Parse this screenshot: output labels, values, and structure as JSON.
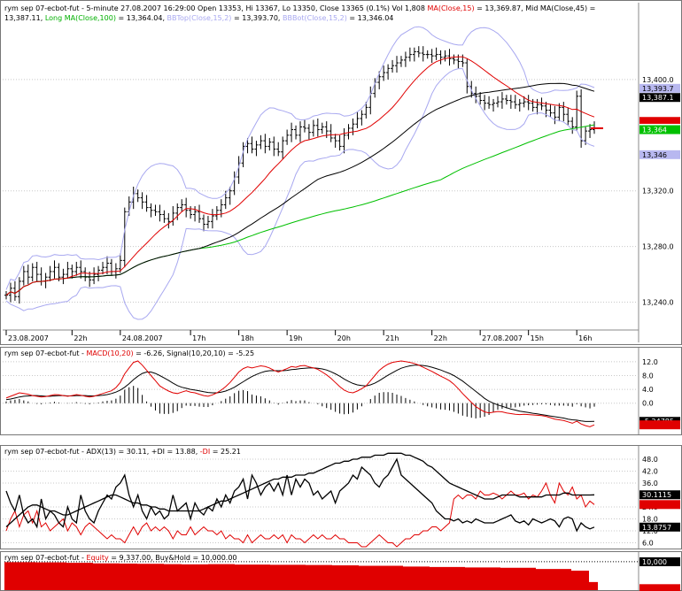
{
  "price_header": {
    "prefix": "rym   sep 07-ecbot-fut - 5-minute 27.08.2007 16:29:00 Open 13353, Hi 13367, Lo 13350, Close 13365 (0.1%) Vol 1,808 ",
    "ma_label": "MA(Close,15)",
    "ma_value": " = 13,369.87, ",
    "mid_label": "Mid MA(Close,45)",
    "mid_value": " =",
    "line2_value": "13,387.11, ",
    "long_label": "Long MA(Close,100)",
    "long_value": " = 13,364.04, ",
    "bbtop_label": "BBTop(Close,15,2)",
    "bbtop_value": " = 13,393.70, ",
    "bbbot_label": "BBBot(Close,15,2)",
    "bbbot_value": " = 13,346.04"
  },
  "macd_header": {
    "prefix": "rym   sep 07-ecbot-fut - ",
    "macd_label": "MACD(10,20)",
    "macd_value": " = -6.26, ",
    "signal_label": "Signal(10,20,10)",
    "signal_value": " = -5.25"
  },
  "adx_header": {
    "prefix": "rym   sep 07-ecbot-fut - ",
    "adx_label": "ADX(13)",
    "adx_value": " = 30.11, ",
    "pdi_label": "+DI",
    "pdi_value": " = 13.88, ",
    "mdi_label": "-DI",
    "mdi_value": " = 25.21"
  },
  "equity_header": {
    "prefix": "rym   sep 07-ecbot-fut - ",
    "equity_label": "Equity",
    "equity_value": " = 9,337.00, ",
    "bh_label": "Buy&Hold",
    "bh_value": " = 10,000.00"
  },
  "colors": {
    "ma15": "#e00000",
    "ma45": "#000000",
    "ma100": "#00c000",
    "bb": "#a8a8f0",
    "equity": "#e00000",
    "tag_blue": "#b8b8f0"
  },
  "chart_data": [
    {
      "type": "line",
      "panel": "price",
      "title": "sep 07-ecbot-fut - 5-minute",
      "y_ticks": [
        "13,400.0",
        "13,320.0",
        "13,280.0",
        "13,240.0"
      ],
      "y_tick_values": [
        13400,
        13320,
        13280,
        13240
      ],
      "ylim": [
        13220,
        13440
      ],
      "x_tick_labels": [
        "23.08.2007",
        "22h",
        "24.08.2007",
        "17h",
        "18h",
        "19h",
        "20h",
        "21h",
        "22h",
        "27.08.2007",
        "15h",
        "16h"
      ],
      "x_tick_index": [
        0,
        15,
        26,
        42,
        53,
        64,
        75,
        86,
        97,
        108,
        119,
        130
      ],
      "bar_count": 135,
      "close": [
        13245,
        13250,
        13244,
        13255,
        13262,
        13258,
        13265,
        13260,
        13255,
        13258,
        13262,
        13265,
        13258,
        13260,
        13264,
        13262,
        13265,
        13262,
        13258,
        13256,
        13260,
        13263,
        13265,
        13268,
        13262,
        13264,
        13270,
        13305,
        13312,
        13318,
        13315,
        13312,
        13308,
        13306,
        13305,
        13303,
        13300,
        13298,
        13304,
        13308,
        13310,
        13306,
        13303,
        13305,
        13300,
        13296,
        13298,
        13302,
        13306,
        13310,
        13315,
        13320,
        13330,
        13340,
        13352,
        13354,
        13350,
        13353,
        13356,
        13352,
        13355,
        13350,
        13348,
        13356,
        13360,
        13364,
        13360,
        13366,
        13365,
        13362,
        13367,
        13364,
        13366,
        13363,
        13358,
        13356,
        13352,
        13360,
        13365,
        13368,
        13372,
        13375,
        13380,
        13390,
        13398,
        13402,
        13405,
        13408,
        13410,
        13412,
        13414,
        13416,
        13418,
        13420,
        13419,
        13418,
        13418,
        13417,
        13418,
        13416,
        13417,
        13415,
        13414,
        13413,
        13412,
        13395,
        13390,
        13388,
        13385,
        13383,
        13382,
        13383,
        13384,
        13386,
        13385,
        13384,
        13382,
        13383,
        13384,
        13383,
        13380,
        13382,
        13381,
        13378,
        13376,
        13373,
        13380,
        13375,
        13370,
        13366,
        13388,
        13356,
        13363,
        13364,
        13365
      ],
      "ma15_last": 13369.87,
      "ma45_last": 13387.11,
      "ma100_last": 13364.04,
      "bbtop_last": 13393.7,
      "bbbot_last": 13346.04,
      "right_tags": [
        {
          "text": "13,393.7",
          "value": 13393.7,
          "bg": "#b8b8f0",
          "fg": "#000000"
        },
        {
          "text": "13,387.1",
          "value": 13387.1,
          "bg": "#000000",
          "fg": "#ffffff"
        },
        {
          "text": "13,369.9",
          "value": 13369.9,
          "bg": "#e00000",
          "fg": "#e00000"
        },
        {
          "text": "13,365",
          "value": 13365,
          "bg": "#ffffff",
          "fg": "#000000"
        },
        {
          "text": "13,364",
          "value": 13364,
          "bg": "#00c000",
          "fg": "#ffffff"
        },
        {
          "text": "13,346",
          "value": 13346,
          "bg": "#b8b8f0",
          "fg": "#000000"
        }
      ]
    },
    {
      "type": "line",
      "panel": "macd",
      "series": [
        {
          "name": "MACD(10,20)",
          "last": -6.26
        },
        {
          "name": "Signal(10,20,10)",
          "last": -5.25
        }
      ],
      "y_ticks": [
        "12.0",
        "8.0",
        "4.0",
        "0.0"
      ],
      "y_tick_values": [
        12,
        8,
        4,
        0
      ],
      "ylim": [
        -8,
        14
      ],
      "macd": [
        1.5,
        2.0,
        2.5,
        3.0,
        2.8,
        2.6,
        2.2,
        2.0,
        1.8,
        1.9,
        2.2,
        2.5,
        2.4,
        2.2,
        2.0,
        2.2,
        2.5,
        2.3,
        2.0,
        1.8,
        2.0,
        2.4,
        2.8,
        3.2,
        3.6,
        4.5,
        6.0,
        8.5,
        10.2,
        11.8,
        12.2,
        11.0,
        9.5,
        8.0,
        6.5,
        5.0,
        4.2,
        3.5,
        3.0,
        2.8,
        3.2,
        3.6,
        3.2,
        3.0,
        2.6,
        2.2,
        2.0,
        2.4,
        3.0,
        3.8,
        4.8,
        6.0,
        7.5,
        9.0,
        10.0,
        10.5,
        10.2,
        10.5,
        10.8,
        10.6,
        10.2,
        9.5,
        9.0,
        9.5,
        10.0,
        10.6,
        10.4,
        10.8,
        10.9,
        10.5,
        10.2,
        9.8,
        9.0,
        8.2,
        7.2,
        6.0,
        4.8,
        3.8,
        3.2,
        3.0,
        3.5,
        4.2,
        5.0,
        6.5,
        8.0,
        9.5,
        10.5,
        11.3,
        11.8,
        12.0,
        12.2,
        12.0,
        11.8,
        11.5,
        11.0,
        10.4,
        9.8,
        9.2,
        8.5,
        7.8,
        7.2,
        6.5,
        5.5,
        4.2,
        2.8,
        1.5,
        0.2,
        -1.0,
        -1.8,
        -2.5,
        -2.8,
        -2.6,
        -2.4,
        -2.5,
        -2.8,
        -3.0,
        -3.2,
        -3.3,
        -3.2,
        -3.3,
        -3.4,
        -3.5,
        -3.6,
        -3.8,
        -4.2,
        -4.6,
        -4.8,
        -5.0,
        -5.4,
        -5.8,
        -5.2,
        -6.0,
        -6.5,
        -6.8,
        -6.26
      ],
      "signal": [
        1.0,
        1.2,
        1.5,
        1.8,
        2.0,
        2.1,
        2.2,
        2.2,
        2.1,
        2.0,
        2.0,
        2.1,
        2.2,
        2.2,
        2.1,
        2.1,
        2.2,
        2.2,
        2.2,
        2.1,
        2.1,
        2.2,
        2.3,
        2.5,
        2.8,
        3.2,
        3.8,
        4.6,
        5.6,
        6.8,
        7.8,
        8.6,
        9.0,
        9.0,
        8.6,
        8.0,
        7.3,
        6.6,
        5.8,
        5.1,
        4.6,
        4.3,
        4.0,
        3.8,
        3.6,
        3.3,
        3.1,
        3.0,
        3.0,
        3.2,
        3.5,
        4.0,
        4.6,
        5.4,
        6.2,
        7.0,
        7.7,
        8.3,
        8.8,
        9.2,
        9.4,
        9.4,
        9.4,
        9.4,
        9.5,
        9.7,
        9.8,
        10.0,
        10.1,
        10.2,
        10.2,
        10.1,
        9.9,
        9.6,
        9.1,
        8.5,
        7.8,
        7.0,
        6.3,
        5.7,
        5.3,
        5.1,
        5.0,
        5.3,
        5.8,
        6.5,
        7.3,
        8.1,
        8.8,
        9.5,
        10.1,
        10.5,
        10.8,
        11.0,
        11.0,
        10.9,
        10.7,
        10.4,
        10.0,
        9.6,
        9.1,
        8.6,
        8.0,
        7.2,
        6.4,
        5.4,
        4.4,
        3.4,
        2.4,
        1.4,
        0.6,
        0.0,
        -0.5,
        -0.9,
        -1.3,
        -1.7,
        -2.0,
        -2.3,
        -2.5,
        -2.7,
        -2.9,
        -3.1,
        -3.3,
        -3.5,
        -3.7,
        -3.9,
        -4.1,
        -4.3,
        -4.6,
        -4.8,
        -4.9,
        -5.1,
        -5.3,
        -5.3,
        -5.25
      ],
      "right_tags": [
        {
          "text": "-5.24785",
          "value": -5.24785,
          "bg": "#000000",
          "fg": "#ffffff"
        },
        {
          "text": "-6.26019",
          "value": -6.26019,
          "bg": "#e00000",
          "fg": "#e00000"
        }
      ]
    },
    {
      "type": "line",
      "panel": "adx",
      "series": [
        {
          "name": "ADX(13)",
          "last": 30.11
        },
        {
          "name": "+DI",
          "last": 13.88
        },
        {
          "name": "-DI",
          "last": 25.21
        }
      ],
      "y_ticks": [
        "48.0",
        "42.0",
        "36.0",
        "24.0",
        "18.0",
        "12.0",
        "6.0"
      ],
      "y_tick_values": [
        48,
        42,
        36,
        24,
        18,
        12,
        6
      ],
      "ylim": [
        4,
        52
      ],
      "adx": [
        14,
        16,
        18,
        20,
        22,
        24,
        25,
        25,
        24,
        23,
        22,
        22,
        21,
        20,
        20,
        21,
        22,
        23,
        24,
        25,
        26,
        27,
        28,
        29,
        30,
        30,
        29,
        28,
        27,
        26,
        26,
        25,
        25,
        24,
        24,
        23,
        23,
        22,
        22,
        22,
        22,
        22,
        22,
        22,
        22,
        23,
        24,
        25,
        26,
        27,
        27,
        28,
        29,
        30,
        31,
        32,
        33,
        34,
        35,
        36,
        37,
        38,
        38,
        39,
        39,
        39,
        40,
        40,
        40,
        41,
        41,
        42,
        43,
        44,
        45,
        46,
        46,
        47,
        47,
        48,
        48,
        49,
        49,
        49,
        50,
        50,
        50,
        51,
        51,
        51,
        51,
        50,
        50,
        49,
        48,
        47,
        45,
        44,
        42,
        40,
        38,
        36,
        35,
        34,
        33,
        32,
        31,
        30,
        29,
        28,
        28,
        28,
        29,
        30,
        30,
        30,
        30,
        29,
        29,
        29,
        29,
        29,
        29,
        30,
        30,
        30,
        30,
        31,
        31,
        30,
        30,
        30,
        30,
        30,
        30.11
      ],
      "plus_di": [
        32,
        26,
        22,
        30,
        20,
        16,
        18,
        14,
        28,
        18,
        22,
        20,
        16,
        14,
        24,
        18,
        16,
        30,
        22,
        18,
        16,
        22,
        26,
        30,
        28,
        34,
        36,
        40,
        30,
        24,
        30,
        22,
        18,
        24,
        20,
        22,
        18,
        20,
        30,
        22,
        24,
        26,
        18,
        26,
        22,
        20,
        24,
        22,
        28,
        24,
        30,
        26,
        32,
        34,
        38,
        28,
        40,
        36,
        30,
        34,
        36,
        32,
        36,
        30,
        40,
        30,
        38,
        34,
        38,
        36,
        30,
        32,
        28,
        30,
        32,
        26,
        32,
        34,
        36,
        40,
        38,
        44,
        42,
        40,
        36,
        34,
        38,
        40,
        44,
        48,
        40,
        38,
        36,
        34,
        32,
        30,
        28,
        26,
        22,
        20,
        18,
        18,
        17,
        18,
        16,
        17,
        16,
        18,
        17,
        16,
        16,
        16,
        17,
        18,
        19,
        20,
        17,
        16,
        17,
        15,
        18,
        17,
        16,
        17,
        18,
        17,
        14,
        18,
        19,
        18,
        12,
        16,
        14,
        13,
        13.88
      ],
      "minus_di": [
        12,
        18,
        22,
        14,
        20,
        22,
        16,
        22,
        14,
        16,
        12,
        14,
        16,
        18,
        12,
        16,
        14,
        10,
        14,
        16,
        14,
        12,
        10,
        8,
        10,
        8,
        8,
        6,
        10,
        14,
        10,
        14,
        16,
        12,
        14,
        12,
        14,
        12,
        8,
        12,
        10,
        10,
        14,
        10,
        12,
        14,
        12,
        12,
        10,
        12,
        8,
        10,
        8,
        8,
        6,
        10,
        6,
        8,
        10,
        8,
        8,
        10,
        8,
        10,
        6,
        10,
        8,
        8,
        6,
        8,
        10,
        8,
        10,
        8,
        8,
        10,
        8,
        8,
        6,
        6,
        6,
        4,
        4,
        6,
        8,
        10,
        8,
        6,
        6,
        4,
        6,
        8,
        8,
        10,
        10,
        12,
        12,
        14,
        14,
        12,
        14,
        16,
        28,
        30,
        28,
        30,
        30,
        28,
        32,
        30,
        30,
        31,
        30,
        28,
        30,
        32,
        30,
        30,
        31,
        28,
        30,
        29,
        32,
        36,
        30,
        26,
        36,
        32,
        30,
        34,
        28,
        30,
        24,
        27,
        25.21
      ],
      "right_tags": [
        {
          "text": "30.1115",
          "value": 30.1115,
          "bg": "#000000",
          "fg": "#ffffff"
        },
        {
          "text": "25.2073",
          "value": 25.2073,
          "bg": "#e00000",
          "fg": "#e00000"
        },
        {
          "text": "13.8757",
          "value": 13.8757,
          "bg": "#000000",
          "fg": "#ffffff"
        }
      ]
    },
    {
      "type": "area",
      "panel": "equity",
      "series": [
        {
          "name": "Equity",
          "last": 9337.0
        },
        {
          "name": "Buy&Hold",
          "last": 10000.0
        }
      ],
      "ylim": [
        9300,
        10020
      ],
      "equity_levels": [
        [
          0,
          9990
        ],
        [
          35,
          9985
        ],
        [
          70,
          9975
        ],
        [
          100,
          9960
        ],
        [
          130,
          9955
        ],
        [
          150,
          9948
        ],
        [
          180,
          9940
        ],
        [
          200,
          9935
        ],
        [
          230,
          9942
        ],
        [
          260,
          9930
        ],
        [
          300,
          9925
        ],
        [
          340,
          9920
        ],
        [
          370,
          9910
        ],
        [
          400,
          9900
        ],
        [
          450,
          9880
        ],
        [
          480,
          9870
        ],
        [
          520,
          9860
        ],
        [
          560,
          9850
        ],
        [
          600,
          9820
        ],
        [
          640,
          9780
        ],
        [
          660,
          9500
        ],
        [
          670,
          9337
        ]
      ],
      "right_tags": [
        {
          "text": "10,000",
          "value": 10000,
          "bg": "#000000",
          "fg": "#ffffff"
        },
        {
          "text": "9,337",
          "value": 9337,
          "bg": "#e00000",
          "fg": "#e00000"
        }
      ]
    }
  ]
}
